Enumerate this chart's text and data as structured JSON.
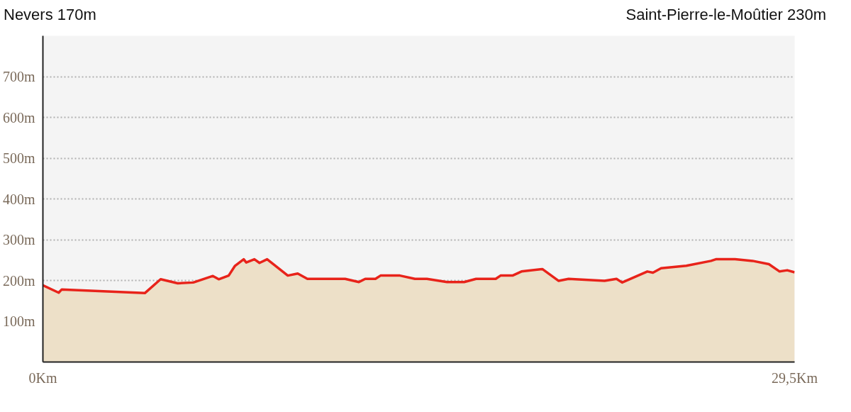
{
  "chart_data": {
    "type": "area",
    "annotations": [
      "Nevers 170m",
      "Saint-Pierre-le-Moûtier 230m"
    ],
    "x": [
      0,
      0.62,
      0.74,
      4.0,
      4.62,
      5.29,
      5.9,
      6.67,
      6.9,
      7.29,
      7.54,
      7.88,
      7.98,
      8.3,
      8.5,
      8.8,
      9.61,
      10.0,
      10.38,
      11.86,
      12.4,
      12.65,
      13.05,
      13.25,
      14.01,
      14.6,
      15.07,
      15.86,
      16.53,
      17.0,
      17.77,
      17.96,
      18.43,
      18.78,
      19.6,
      20.24,
      20.63,
      22.04,
      22.51,
      22.73,
      23.72,
      23.94,
      24.26,
      25.25,
      26.22,
      26.41,
      27.16,
      27.85,
      28.49,
      28.91,
      29.21,
      29.5
    ],
    "series": [
      {
        "color": "#e8231a",
        "values": [
          188,
          170,
          178,
          169,
          203,
          193,
          195,
          211,
          203,
          212,
          236,
          252,
          244,
          252,
          243,
          252,
          212,
          217,
          204,
          204,
          196,
          204,
          204,
          212,
          212,
          204,
          204,
          196,
          196,
          204,
          204,
          212,
          212,
          222,
          228,
          199,
          204,
          199,
          204,
          195,
          222,
          219,
          230,
          236,
          248,
          252,
          252,
          248,
          240,
          222,
          225,
          220
        ]
      }
    ],
    "xlim": [
      0,
      29.5
    ],
    "xticks": [
      {
        "value": 0,
        "label": "0Km"
      },
      {
        "value": 29.5,
        "label": "29,5Km"
      }
    ],
    "ylim": [
      0,
      800
    ],
    "yticks": [
      {
        "value": 100,
        "label": "100m"
      },
      {
        "value": 200,
        "label": "200m"
      },
      {
        "value": 300,
        "label": "300m"
      },
      {
        "value": 400,
        "label": "400m"
      },
      {
        "value": 500,
        "label": "500m"
      },
      {
        "value": 600,
        "label": "600m"
      },
      {
        "value": 700,
        "label": "700m"
      }
    ],
    "grid": "y",
    "marker": "none",
    "line_style": "solid"
  }
}
